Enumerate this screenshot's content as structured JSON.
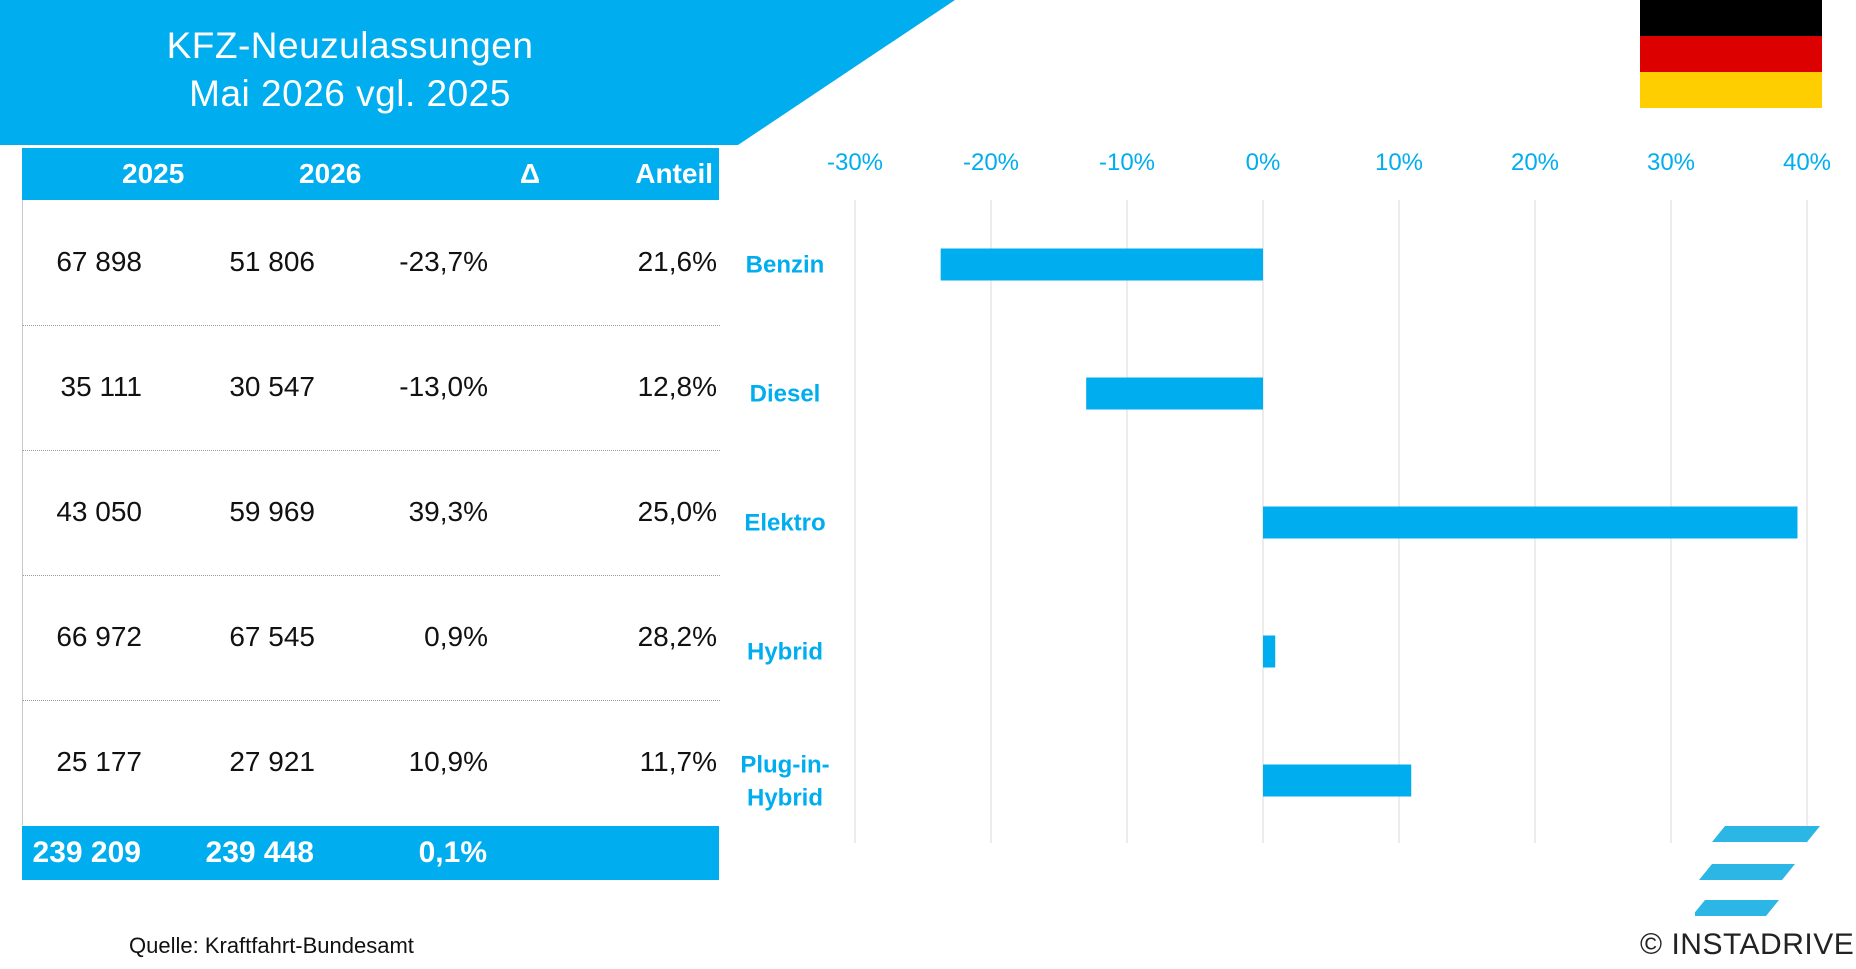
{
  "header": {
    "title_line1": "KFZ-Neuzulassungen",
    "title_line2": "Mai 2026 vgl. 2025",
    "banner_color": "#00adef"
  },
  "flag": {
    "colors": [
      "#000000",
      "#dd0000",
      "#ffce00"
    ]
  },
  "table": {
    "columns": [
      "2025",
      "2026",
      "Δ",
      "Anteil"
    ],
    "rows": [
      {
        "v2025": "67 898",
        "v2026": "51 806",
        "delta": "-23,7%",
        "share": "21,6%"
      },
      {
        "v2025": "35 111",
        "v2026": "30 547",
        "delta": "-13,0%",
        "share": "12,8%"
      },
      {
        "v2025": "43 050",
        "v2026": "59 969",
        "delta": "39,3%",
        "share": "25,0%"
      },
      {
        "v2025": "66 972",
        "v2026": "67 545",
        "delta": "0,9%",
        "share": "28,2%"
      },
      {
        "v2025": "25 177",
        "v2026": "27 921",
        "delta": "10,9%",
        "share": "11,7%"
      }
    ],
    "total": {
      "v2025": "239 209",
      "v2026": "239 448",
      "delta": "0,1%"
    }
  },
  "chart_data": {
    "type": "bar",
    "orientation": "horizontal",
    "categories": [
      "Benzin",
      "Diesel",
      "Elektro",
      "Hybrid",
      "Plug-in-Hybrid"
    ],
    "values": [
      -23.7,
      -13.0,
      39.3,
      0.9,
      10.9
    ],
    "x_ticks": [
      "-30%",
      "-20%",
      "-10%",
      "0%",
      "10%",
      "20%",
      "30%",
      "40%"
    ],
    "xlim": [
      -30,
      40
    ],
    "grid": "vertical",
    "axis_position": "top",
    "bar_color": "#00adef"
  },
  "footer": {
    "source": "Quelle: Kraftfahrt-Bundesamt",
    "copyright": "© INSTADRIVE"
  }
}
